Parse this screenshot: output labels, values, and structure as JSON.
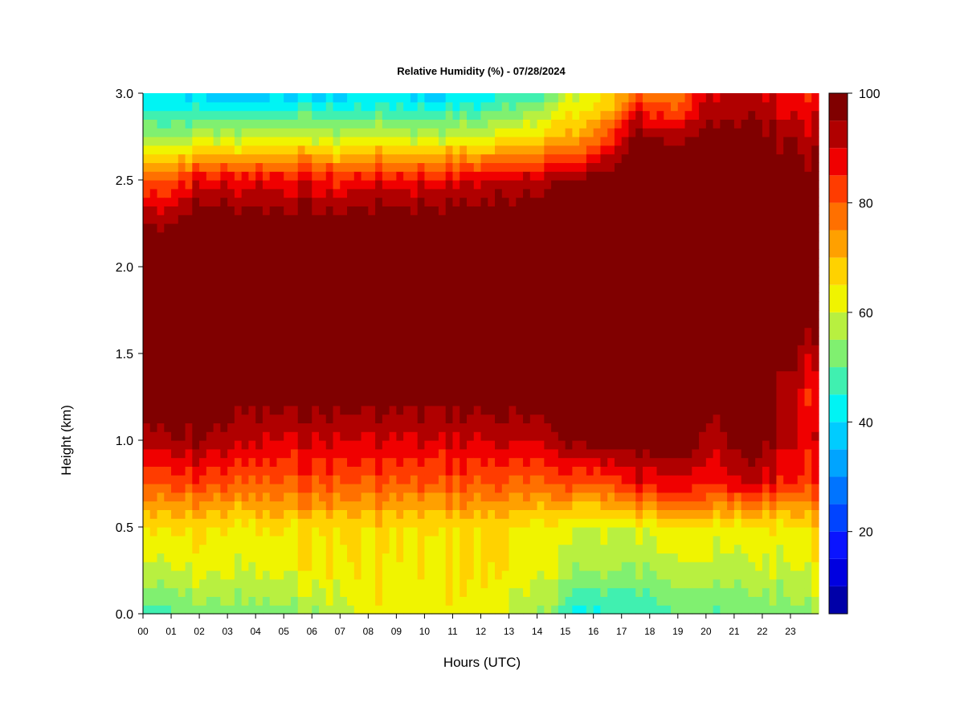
{
  "chart_data": {
    "type": "heatmap",
    "title": "Relative Humidity (%) - 07/28/2024",
    "xlabel": "Hours (UTC)",
    "ylabel": "Height (km)",
    "xlim": [
      0,
      24
    ],
    "ylim": [
      0.0,
      3.0
    ],
    "x_ticks": [
      "00",
      "01",
      "02",
      "03",
      "04",
      "05",
      "06",
      "07",
      "08",
      "09",
      "10",
      "11",
      "12",
      "13",
      "14",
      "15",
      "16",
      "17",
      "18",
      "19",
      "20",
      "21",
      "22",
      "23"
    ],
    "y_ticks": [
      "0.0",
      "0.5",
      "1.0",
      "1.5",
      "2.0",
      "2.5",
      "3.0"
    ],
    "colorbar": {
      "range": [
        5,
        100
      ],
      "ticks": [
        "20",
        "40",
        "60",
        "80",
        "100"
      ],
      "levels": [
        5,
        10,
        15,
        20,
        25,
        30,
        35,
        40,
        45,
        50,
        55,
        60,
        65,
        70,
        75,
        80,
        85,
        90,
        95,
        100
      ],
      "colors": [
        "#00006a",
        "#0000a8",
        "#0000e0",
        "#0a14ff",
        "#0044ff",
        "#0074ff",
        "#00a4ff",
        "#00ccff",
        "#00f4f4",
        "#40f0b0",
        "#80f070",
        "#b8f040",
        "#f0f400",
        "#ffd200",
        "#ffa000",
        "#ff7000",
        "#ff3c00",
        "#f00000",
        "#b00000",
        "#800000"
      ]
    },
    "grid": false,
    "profiles": [
      {
        "hour": 0.0,
        "rh": [
          48,
          58,
          65,
          80,
          92,
          100,
          100,
          100,
          100,
          95,
          80,
          55,
          40
        ]
      },
      {
        "hour": 1.0,
        "rh": [
          50,
          60,
          66,
          82,
          95,
          100,
          100,
          100,
          100,
          96,
          82,
          55,
          40
        ]
      },
      {
        "hour": 2.0,
        "rh": [
          52,
          62,
          66,
          82,
          95,
          100,
          100,
          100,
          100,
          100,
          88,
          58,
          38
        ]
      },
      {
        "hour": 3.0,
        "rh": [
          52,
          60,
          64,
          80,
          92,
          98,
          100,
          100,
          100,
          100,
          88,
          58,
          36
        ]
      },
      {
        "hour": 5.0,
        "rh": [
          54,
          62,
          66,
          80,
          90,
          98,
          100,
          100,
          100,
          100,
          88,
          60,
          38
        ]
      },
      {
        "hour": 7.0,
        "rh": [
          56,
          64,
          66,
          80,
          90,
          98,
          100,
          100,
          100,
          98,
          85,
          58,
          38
        ]
      },
      {
        "hour": 8.0,
        "rh": [
          62,
          65,
          66,
          80,
          90,
          98,
          100,
          100,
          100,
          100,
          88,
          60,
          40
        ]
      },
      {
        "hour": 10.0,
        "rh": [
          62,
          64,
          66,
          80,
          90,
          98,
          100,
          100,
          100,
          100,
          88,
          58,
          38
        ]
      },
      {
        "hour": 12.0,
        "rh": [
          62,
          66,
          66,
          80,
          90,
          98,
          100,
          100,
          100,
          100,
          90,
          60,
          40
        ]
      },
      {
        "hour": 14.5,
        "rh": [
          55,
          62,
          65,
          80,
          92,
          100,
          100,
          100,
          100,
          100,
          95,
          70,
          50
        ]
      },
      {
        "hour": 15.0,
        "rh": [
          44,
          55,
          60,
          80,
          95,
          100,
          100,
          100,
          100,
          100,
          95,
          68,
          58
        ]
      },
      {
        "hour": 16.5,
        "rh": [
          44,
          55,
          60,
          80,
          98,
          100,
          100,
          100,
          100,
          100,
          100,
          80,
          62
        ]
      },
      {
        "hour": 17.5,
        "rh": [
          46,
          55,
          62,
          88,
          100,
          100,
          100,
          100,
          100,
          100,
          100,
          100,
          80
        ]
      },
      {
        "hour": 19.0,
        "rh": [
          48,
          56,
          62,
          85,
          100,
          100,
          100,
          100,
          100,
          100,
          100,
          90,
          70
        ]
      },
      {
        "hour": 20.0,
        "rh": [
          50,
          58,
          64,
          86,
          92,
          98,
          100,
          100,
          100,
          100,
          100,
          98,
          90
        ]
      },
      {
        "hour": 21.5,
        "rh": [
          52,
          58,
          64,
          90,
          100,
          100,
          100,
          100,
          100,
          100,
          100,
          98,
          92
        ]
      },
      {
        "hour": 23.0,
        "rh": [
          52,
          60,
          64,
          85,
          92,
          92,
          98,
          100,
          100,
          100,
          100,
          95,
          85
        ]
      },
      {
        "hour": 23.8,
        "rh": [
          55,
          62,
          66,
          82,
          88,
          85,
          90,
          100,
          100,
          100,
          98,
          92,
          85
        ]
      }
    ],
    "profile_heights_km": [
      0.0,
      0.25,
      0.5,
      0.75,
      1.0,
      1.25,
      1.5,
      1.75,
      2.0,
      2.25,
      2.5,
      2.75,
      3.0
    ]
  }
}
